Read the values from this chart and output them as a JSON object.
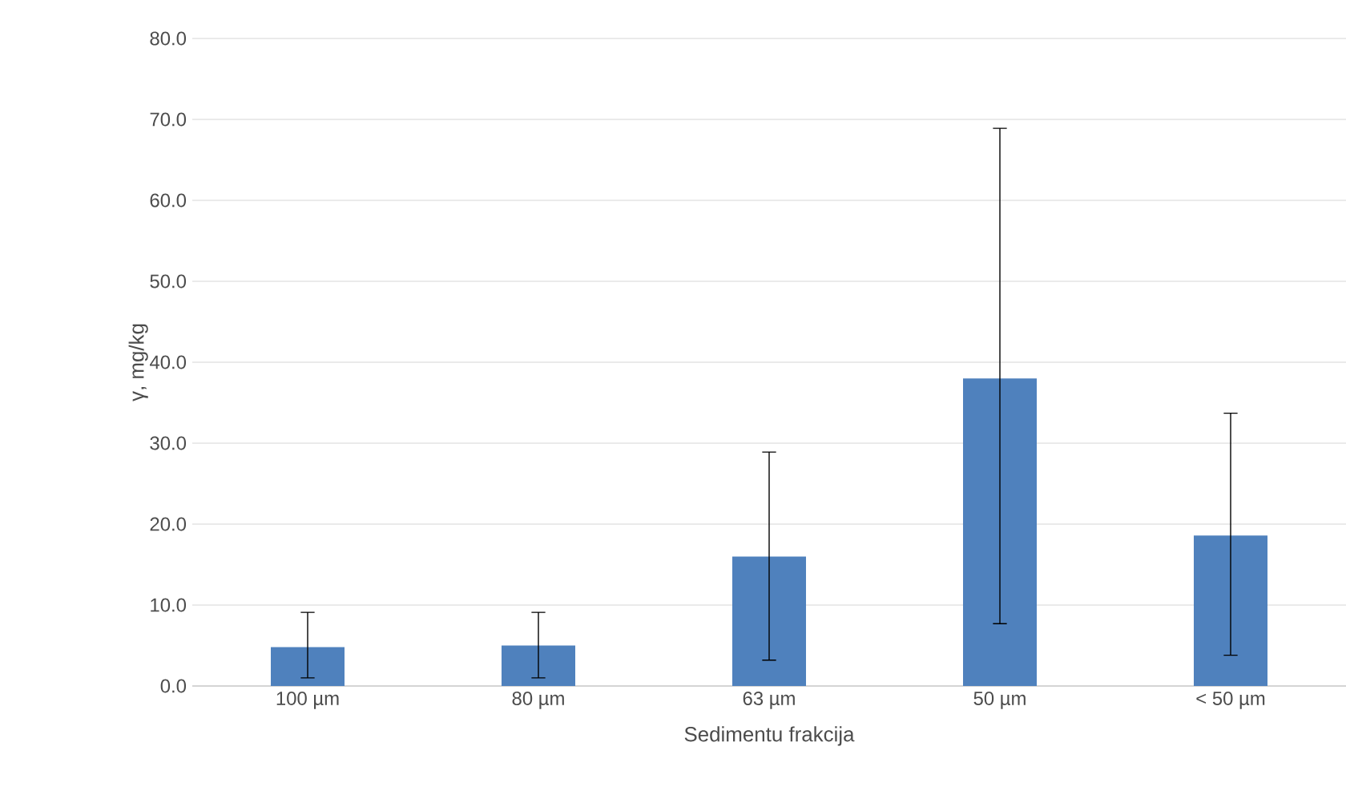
{
  "chart_data": {
    "type": "bar",
    "xlabel": "Sedimentu frakcija",
    "ylabel": "γ, mg/kg",
    "categories": [
      "100 µm",
      "80 µm",
      "63 µm",
      "50 µm",
      "< 50 µm"
    ],
    "values": [
      4.8,
      5.0,
      16.0,
      38.0,
      18.6
    ],
    "errors": [
      [
        1.0,
        9.1
      ],
      [
        1.0,
        9.1
      ],
      [
        3.2,
        28.9
      ],
      [
        7.7,
        68.9
      ],
      [
        3.8,
        33.7
      ]
    ],
    "color": "#4f81bd",
    "ylim": [
      0,
      80
    ],
    "yticks": [
      {
        "value": 0,
        "label": "0.0"
      },
      {
        "value": 10,
        "label": "10.0"
      },
      {
        "value": 20,
        "label": "20.0"
      },
      {
        "value": 30,
        "label": "30.0"
      },
      {
        "value": 40,
        "label": "40.0"
      },
      {
        "value": 50,
        "label": "50.0"
      },
      {
        "value": 60,
        "label": "60.0"
      },
      {
        "value": 70,
        "label": "70.0"
      },
      {
        "value": 80,
        "label": "80.0"
      }
    ],
    "grid": "y"
  }
}
